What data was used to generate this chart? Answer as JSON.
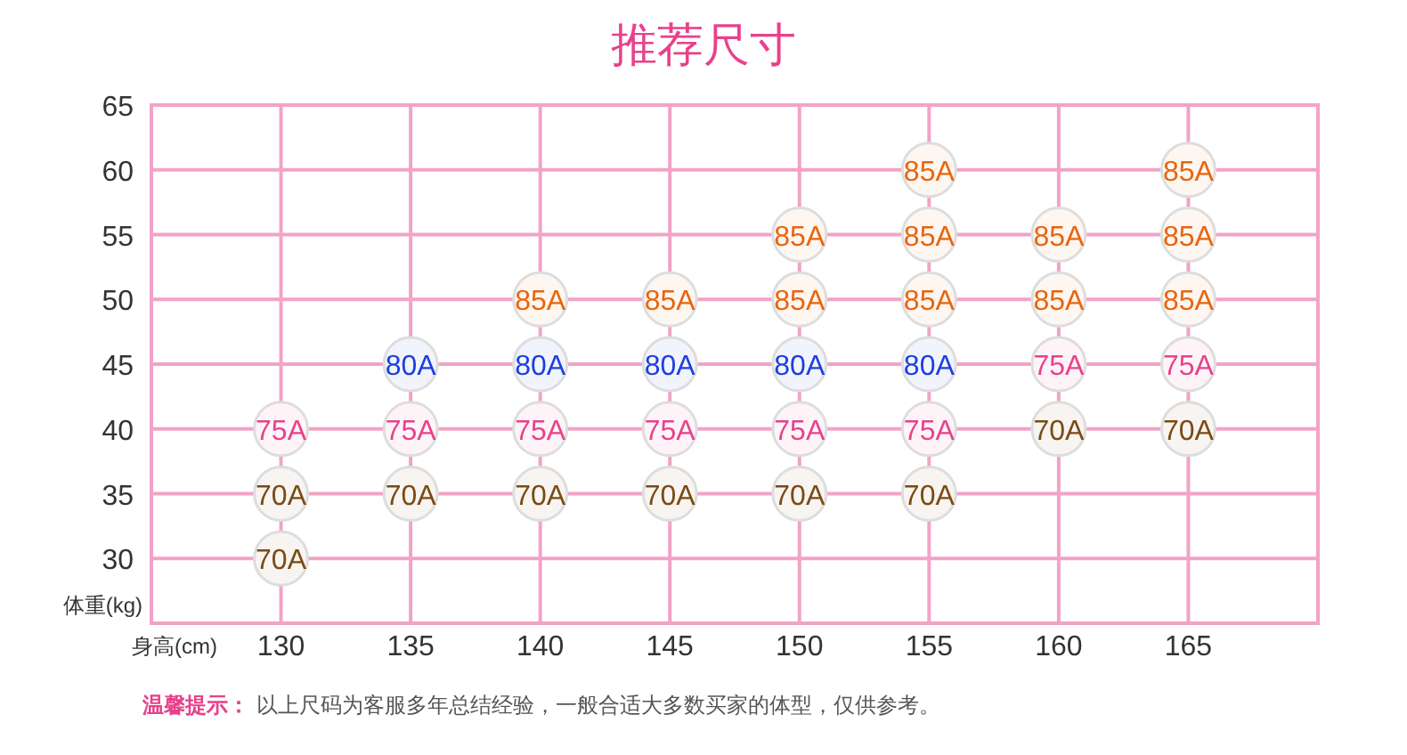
{
  "chart_data": {
    "type": "scatter",
    "title": "推荐尺寸",
    "xlabel": "身高(cm)",
    "ylabel": "体重(kg)",
    "annotations": [
      "温馨提示：",
      "以上尺码为客服多年总结经验，一般合适大多数买家的体型，仅供参考。"
    ],
    "xlim": [
      125,
      170
    ],
    "ylim": [
      25,
      65
    ],
    "xticks": [
      130,
      135,
      140,
      145,
      150,
      155,
      160,
      165
    ],
    "yticks": [
      30,
      35,
      40,
      45,
      50,
      55,
      60,
      65
    ],
    "grid": true,
    "marker": "circle",
    "series": [
      {
        "name": "70A",
        "color": "#7b4a12",
        "x": [
          130,
          130,
          135,
          140,
          145,
          150,
          155,
          160,
          165
        ],
        "values": [
          35,
          30,
          35,
          35,
          35,
          35,
          35,
          40,
          40
        ]
      },
      {
        "name": "75A",
        "color": "#e8418c",
        "x": [
          130,
          135,
          140,
          145,
          150,
          155,
          160,
          165
        ],
        "values": [
          40,
          40,
          40,
          40,
          40,
          40,
          45,
          45
        ]
      },
      {
        "name": "80A",
        "color": "#1c3fe0",
        "x": [
          135,
          140,
          145,
          150,
          155
        ],
        "values": [
          45,
          45,
          45,
          45,
          45
        ]
      },
      {
        "name": "85A",
        "color": "#e8650c",
        "x": [
          140,
          145,
          150,
          150,
          155,
          155,
          155,
          160,
          160,
          165,
          165,
          165
        ],
        "values": [
          50,
          50,
          55,
          50,
          60,
          55,
          50,
          55,
          50,
          60,
          55,
          50
        ]
      }
    ]
  }
}
